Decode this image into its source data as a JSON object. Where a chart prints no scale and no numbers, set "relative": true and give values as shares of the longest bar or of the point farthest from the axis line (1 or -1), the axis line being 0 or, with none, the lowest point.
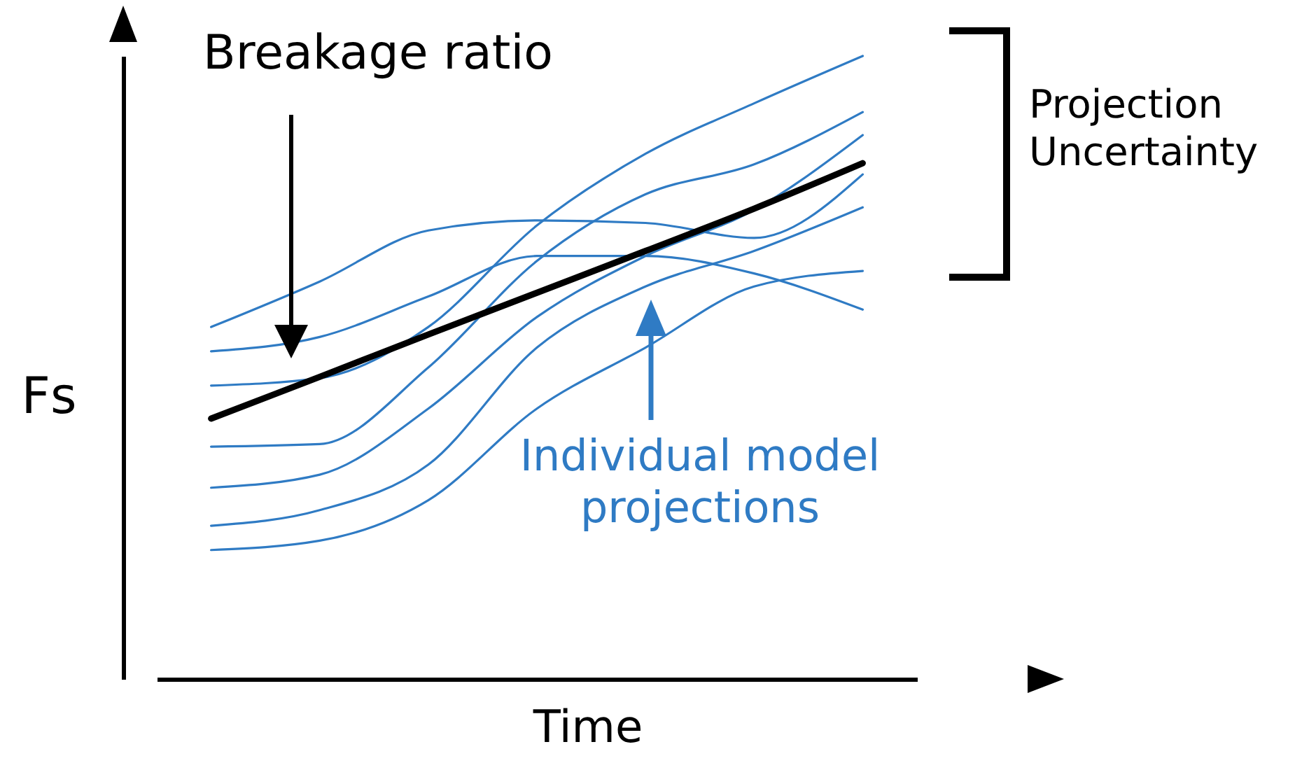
{
  "chart_data": {
    "type": "line",
    "relative": true,
    "xlabel": "Time",
    "ylabel": "Fs",
    "categories": [
      null,
      null,
      null,
      null,
      null,
      null,
      null
    ],
    "series": [
      {
        "color": "#2f7bc4",
        "values": [
          0.565,
          0.638,
          0.72,
          0.736,
          0.732,
          0.708,
          0.81
        ]
      },
      {
        "color": "#2f7bc4",
        "values": [
          0.526,
          0.549,
          0.614,
          0.679,
          0.679,
          0.651,
          0.593
        ]
      },
      {
        "color": "#2f7bc4",
        "values": [
          0.471,
          0.483,
          0.565,
          0.728,
          0.843,
          0.924,
          1
        ]
      },
      {
        "color": "#2f7bc4",
        "values": [
          0.373,
          0.377,
          0.5,
          0.671,
          0.778,
          0.826,
          0.91
        ]
      },
      {
        "color": "#2f7bc4",
        "values": [
          0.307,
          0.328,
          0.434,
          0.581,
          0.679,
          0.753,
          0.873
        ]
      },
      {
        "color": "#2f7bc4",
        "values": [
          0.246,
          0.271,
          0.344,
          0.532,
          0.63,
          0.687,
          0.757
        ]
      },
      {
        "color": "#2f7bc4",
        "values": [
          0.207,
          0.222,
          0.287,
          0.434,
          0.532,
          0.63,
          0.655
        ]
      },
      {
        "color": "#000000",
        "values": [
          0.418,
          0.485,
          0.553,
          0.62,
          0.687,
          0.755,
          0.828
        ]
      }
    ],
    "annotations": [
      "Breakage ratio",
      "Individual model projections",
      "Projection Uncertainty"
    ]
  }
}
